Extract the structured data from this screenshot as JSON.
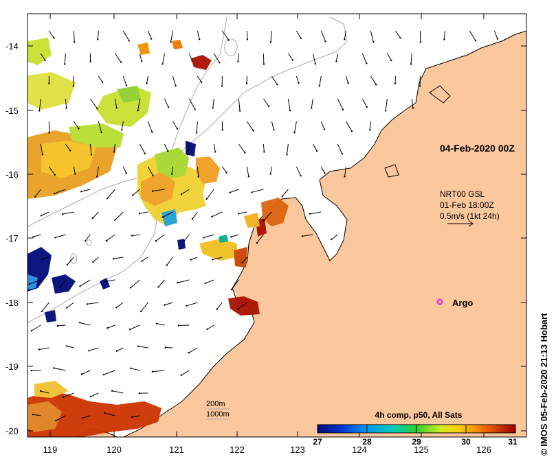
{
  "map": {
    "date_label": "04-Feb-2020 00Z",
    "current_legend": {
      "line1": "NRT00 GSL",
      "line2": "01-Feb 18:00Z",
      "line3": "0.5m/s (1kt 24h)"
    },
    "argo_label": "Argo",
    "colorbar": {
      "title": "4h comp, p50, All Sats",
      "ticks": [
        "27",
        "28",
        "29",
        "30",
        "31"
      ]
    },
    "isobath_labels": [
      "200m",
      "1000m"
    ],
    "copyright": "© IMOS 05-Feb-2020 21:13 Hobart",
    "y_ticks": [
      "-14",
      "-15",
      "-16",
      "-17",
      "-18",
      "-19",
      "-20"
    ],
    "x_ticks": [
      "119",
      "120",
      "121",
      "122",
      "123",
      "124",
      "125",
      "126"
    ],
    "colors": {
      "land": "#fbc79c",
      "ocean": "#ffffff",
      "argo": "#e020e0",
      "isobath": "#aaaaaa"
    }
  }
}
